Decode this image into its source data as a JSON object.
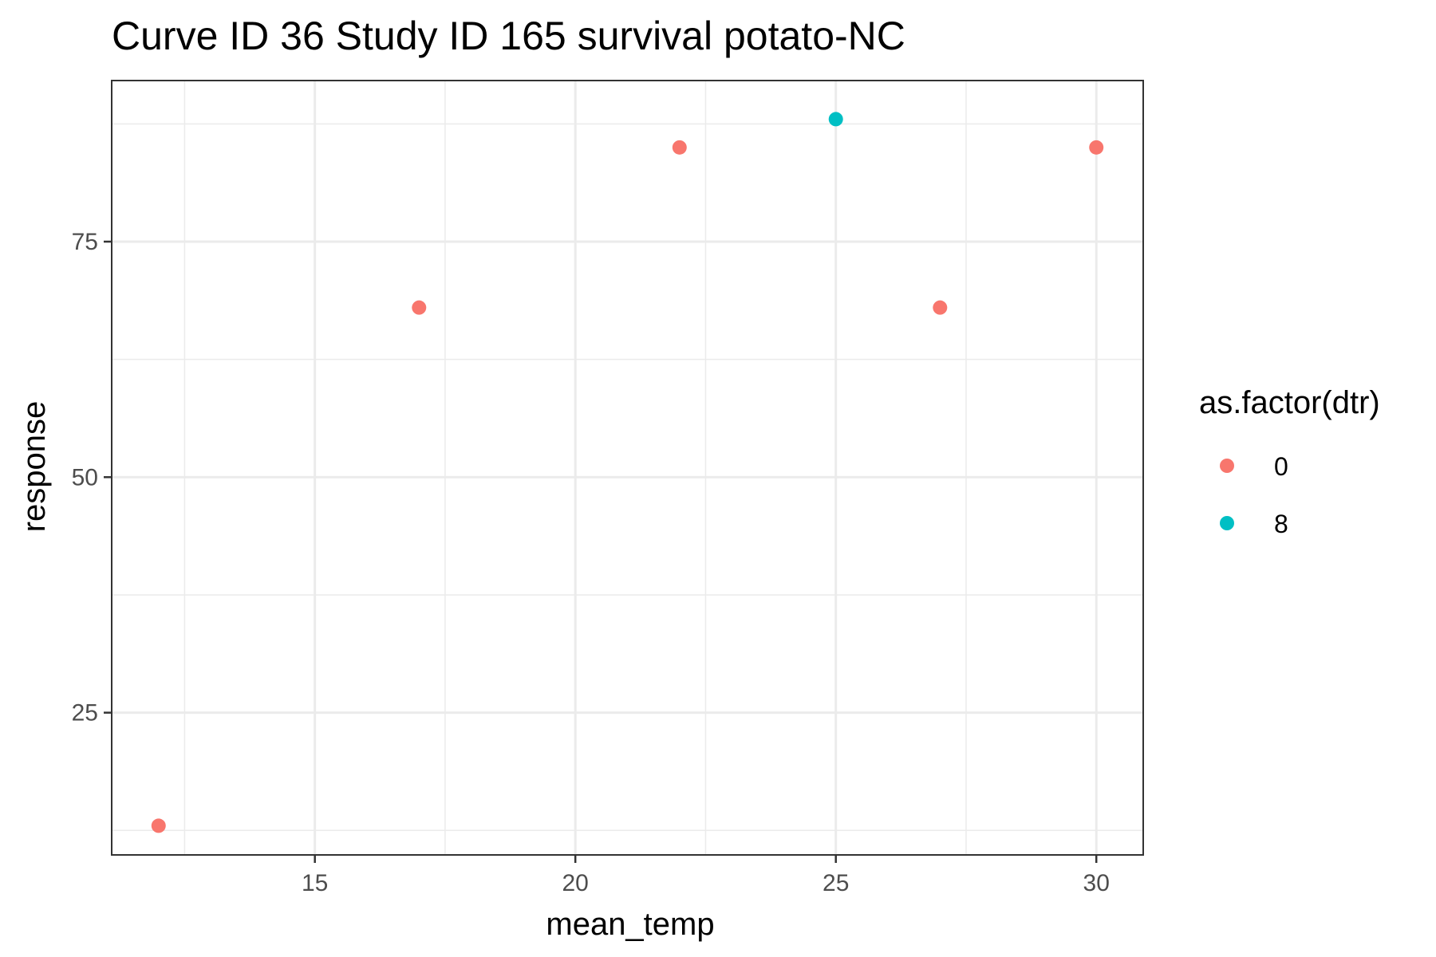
{
  "chart_data": {
    "type": "scatter",
    "title": "Curve ID 36 Study ID 165 survival potato-NC",
    "xlabel": "mean_temp",
    "ylabel": "response",
    "xlim": [
      11.1,
      30.9
    ],
    "ylim": [
      9.9,
      92.1
    ],
    "xticks": [
      15,
      20,
      25,
      30
    ],
    "yticks": [
      25,
      50,
      75
    ],
    "xtick_labels": [
      "15",
      "20",
      "25",
      "30"
    ],
    "ytick_labels": [
      "25",
      "50",
      "75"
    ],
    "grid": true,
    "legend": {
      "title": "as.factor(dtr)",
      "position": "right",
      "entries": [
        {
          "label": "0",
          "color": "#F8766D"
        },
        {
          "label": "8",
          "color": "#00BFC4"
        }
      ]
    },
    "series": [
      {
        "name": "0",
        "color": "#F8766D",
        "points": [
          {
            "x": 12,
            "y": 13
          },
          {
            "x": 17,
            "y": 68
          },
          {
            "x": 22,
            "y": 85
          },
          {
            "x": 27,
            "y": 68
          },
          {
            "x": 30,
            "y": 85
          }
        ]
      },
      {
        "name": "8",
        "color": "#00BFC4",
        "points": [
          {
            "x": 25,
            "y": 88
          }
        ]
      }
    ]
  }
}
